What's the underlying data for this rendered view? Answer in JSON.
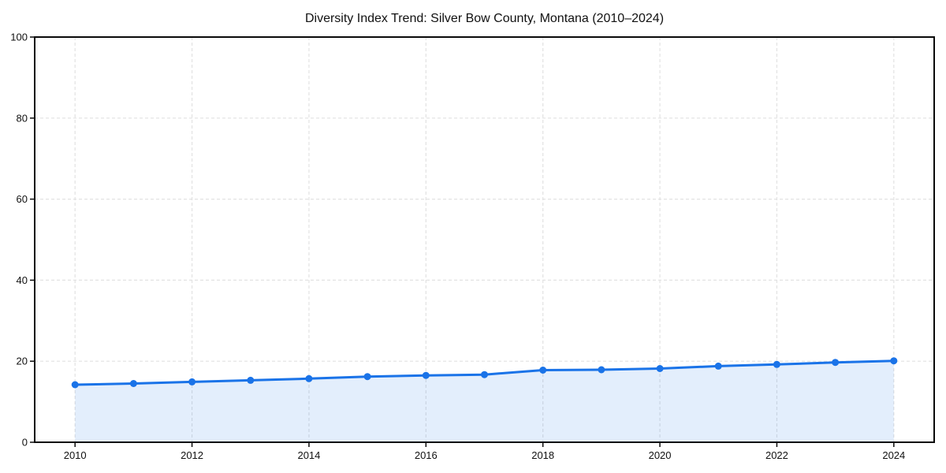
{
  "chart_data": {
    "type": "line",
    "title": "Diversity Index Trend: Silver Bow County, Montana (2010–2024)",
    "series_name": "Diversity Index",
    "x": [
      2010,
      2011,
      2012,
      2013,
      2014,
      2015,
      2016,
      2017,
      2018,
      2019,
      2020,
      2021,
      2022,
      2023,
      2024
    ],
    "values": [
      14.2,
      14.5,
      14.9,
      15.3,
      15.7,
      16.2,
      16.5,
      16.7,
      17.8,
      17.9,
      18.2,
      18.8,
      19.2,
      19.7,
      20.1
    ],
    "xlabel": "",
    "ylabel": "",
    "xlim": [
      2009.31,
      2024.69
    ],
    "ylim": [
      0,
      100
    ],
    "xticks": [
      2010,
      2012,
      2014,
      2016,
      2018,
      2020,
      2022,
      2024
    ],
    "yticks": [
      0,
      20,
      40,
      60,
      80,
      100
    ],
    "grid": true,
    "grid_style": "dashed",
    "legend_position": "none",
    "area_fill": true,
    "marker": "circle",
    "colors": {
      "line": "#1a73e8",
      "fill": "rgba(26,115,232,0.12)",
      "grid": "#e2e2e2",
      "spine": "#0a0a0a",
      "text": "#111111",
      "background": "#ffffff"
    }
  }
}
